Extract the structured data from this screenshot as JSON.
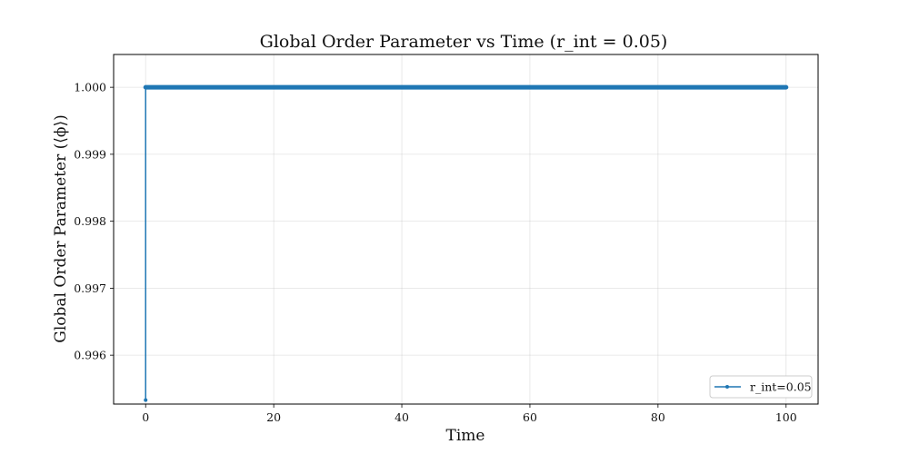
{
  "chart_data": {
    "type": "line",
    "title": "Global Order Parameter vs Time (r_int = 0.05)",
    "xlabel": "Time",
    "ylabel": "Global Order Parameter (⟨ϕ⟩)",
    "xlim": [
      -5,
      105
    ],
    "ylim": [
      0.99527,
      1.00049
    ],
    "xticks": [
      0,
      20,
      40,
      60,
      80,
      100
    ],
    "xtick_labels": [
      "0",
      "20",
      "40",
      "60",
      "80",
      "100"
    ],
    "yticks": [
      0.996,
      0.997,
      0.998,
      0.999,
      1.0
    ],
    "ytick_labels": [
      "0.996",
      "0.997",
      "0.998",
      "0.999",
      "1.000"
    ],
    "grid": true,
    "legend_position": "lower-right",
    "colors": {
      "series": "#1f77b4"
    },
    "series": [
      {
        "name": "r_int=0.05",
        "x_start": 0,
        "x_end": 100,
        "first_value": 0.99533,
        "steady_value": 1.0
      }
    ]
  }
}
